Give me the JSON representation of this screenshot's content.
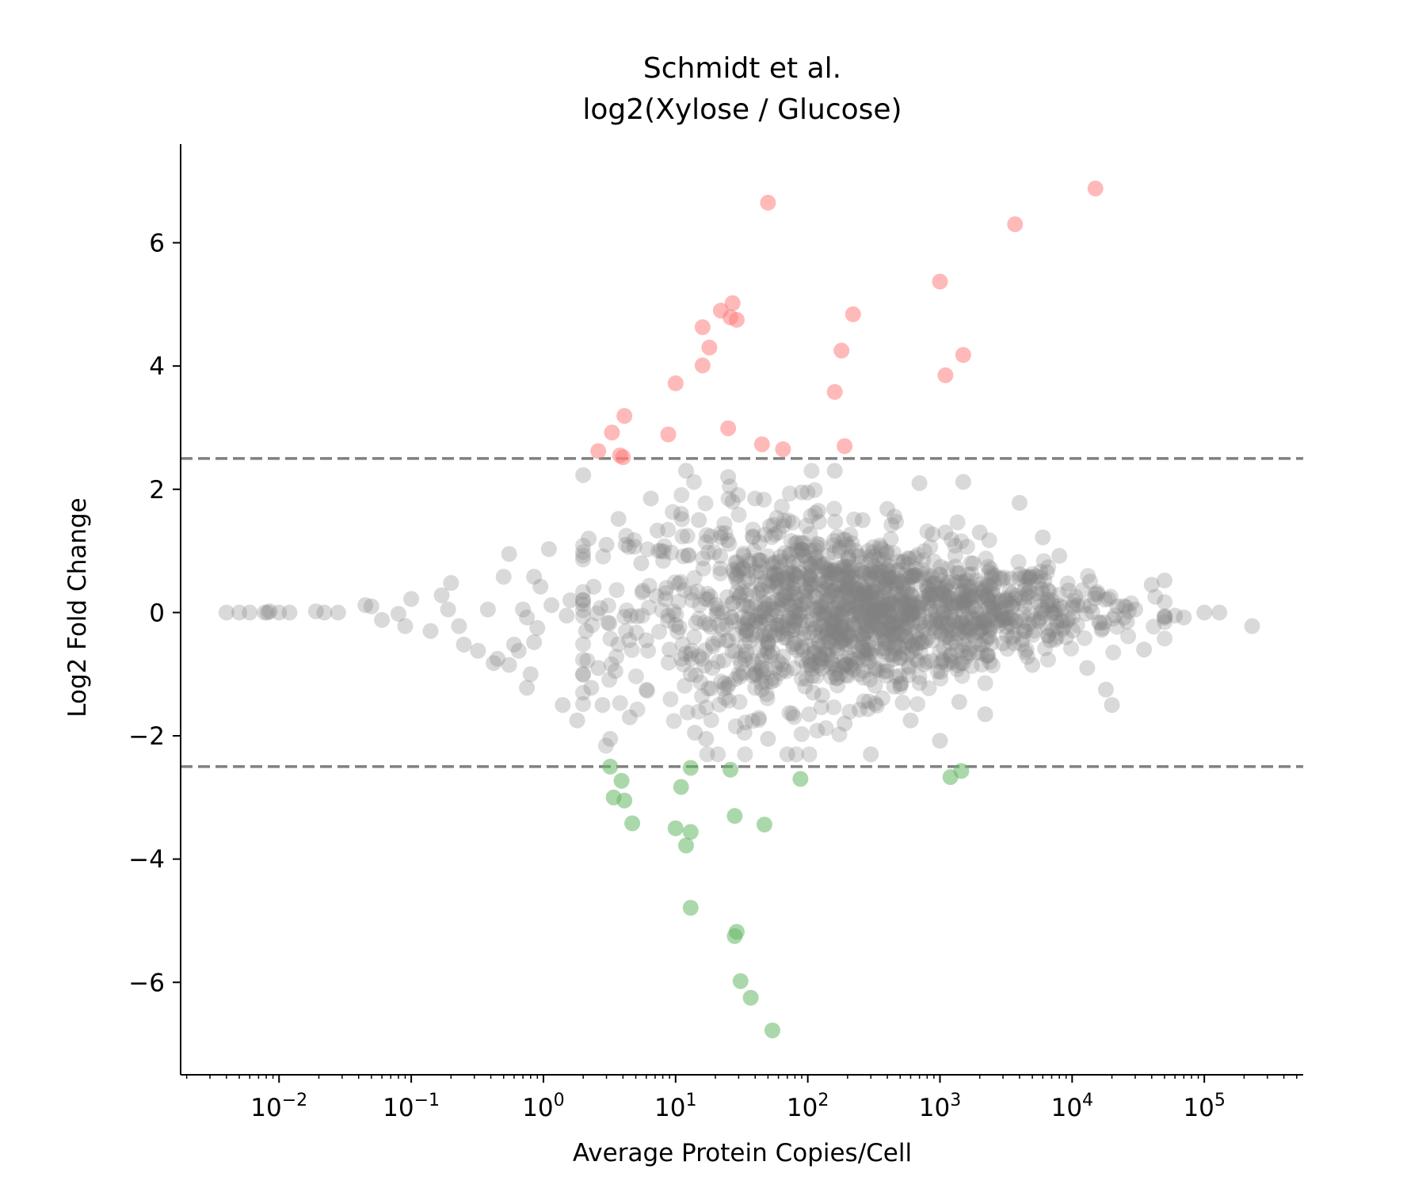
{
  "chart_data": {
    "type": "scatter",
    "title": [
      "Schmidt et al.",
      "log2(Xylose / Glucose)"
    ],
    "xlabel": "Average Protein Copies/Cell",
    "ylabel": "Log2 Fold Change",
    "x_scale": "log",
    "xlim": [
      0.0018,
      560000
    ],
    "ylim": [
      -7.5,
      7.6
    ],
    "x_ticks": [
      {
        "value": 0.01,
        "base": "10",
        "exp": "−2"
      },
      {
        "value": 0.1,
        "base": "10",
        "exp": "−1"
      },
      {
        "value": 1,
        "base": "10",
        "exp": "0"
      },
      {
        "value": 10,
        "base": "10",
        "exp": "1"
      },
      {
        "value": 100,
        "base": "10",
        "exp": "2"
      },
      {
        "value": 1000,
        "base": "10",
        "exp": "3"
      },
      {
        "value": 10000,
        "base": "10",
        "exp": "4"
      },
      {
        "value": 100000,
        "base": "10",
        "exp": "5"
      }
    ],
    "y_ticks": [
      {
        "value": 6,
        "label": "6"
      },
      {
        "value": 4,
        "label": "4"
      },
      {
        "value": 2,
        "label": "2"
      },
      {
        "value": 0,
        "label": "0"
      },
      {
        "value": -2,
        "label": "−2"
      },
      {
        "value": -4,
        "label": "−4"
      },
      {
        "value": -6,
        "label": "−6"
      }
    ],
    "thresholds": [
      2.5,
      -2.5
    ],
    "grid": false,
    "legend": "none",
    "colors": {
      "up": "#ff8080",
      "down": "#66b866",
      "other": "#808080",
      "threshold": "#808080"
    },
    "series": [
      {
        "category": "up",
        "points": [
          [
            50,
            6.65
          ],
          [
            15000,
            6.88
          ],
          [
            3700,
            6.3
          ],
          [
            1000,
            5.37
          ],
          [
            220,
            4.84
          ],
          [
            22,
            4.9
          ],
          [
            27,
            5.02
          ],
          [
            26,
            4.79
          ],
          [
            29,
            4.75
          ],
          [
            16,
            4.63
          ],
          [
            18,
            4.3
          ],
          [
            180,
            4.25
          ],
          [
            1500,
            4.18
          ],
          [
            16,
            4.01
          ],
          [
            1100,
            3.85
          ],
          [
            10,
            3.72
          ],
          [
            160,
            3.58
          ],
          [
            4.1,
            3.19
          ],
          [
            3.3,
            2.92
          ],
          [
            8.8,
            2.89
          ],
          [
            25,
            2.99
          ],
          [
            45,
            2.73
          ],
          [
            65,
            2.65
          ],
          [
            190,
            2.7
          ],
          [
            2.6,
            2.62
          ],
          [
            3.8,
            2.55
          ],
          [
            4.0,
            2.52
          ]
        ]
      },
      {
        "category": "down",
        "points": [
          [
            54,
            -6.78
          ],
          [
            37,
            -6.25
          ],
          [
            31,
            -5.98
          ],
          [
            29,
            -5.18
          ],
          [
            28,
            -5.25
          ],
          [
            13,
            -4.79
          ],
          [
            12,
            -3.78
          ],
          [
            13,
            -3.56
          ],
          [
            10,
            -3.5
          ],
          [
            4.7,
            -3.42
          ],
          [
            47,
            -3.44
          ],
          [
            28,
            -3.3
          ],
          [
            3.4,
            -3.0
          ],
          [
            4.1,
            -3.05
          ],
          [
            11,
            -2.83
          ],
          [
            3.9,
            -2.73
          ],
          [
            88,
            -2.7
          ],
          [
            1200,
            -2.67
          ],
          [
            1450,
            -2.57
          ],
          [
            13,
            -2.52
          ],
          [
            26,
            -2.55
          ],
          [
            3.2,
            -2.5
          ]
        ]
      }
    ],
    "other_points": [
      [
        0.004,
        0
      ],
      [
        0.005,
        0
      ],
      [
        0.006,
        0
      ],
      [
        0.0078,
        0
      ],
      [
        0.0082,
        0
      ],
      [
        0.0085,
        0.02
      ],
      [
        0.01,
        0
      ],
      [
        0.012,
        0
      ],
      [
        0.019,
        0.02
      ],
      [
        0.022,
        0
      ],
      [
        0.028,
        0
      ],
      [
        0.045,
        0.12
      ],
      [
        0.05,
        0.1
      ],
      [
        0.06,
        -0.12
      ],
      [
        0.08,
        -0.02
      ],
      [
        0.1,
        0.22
      ],
      [
        0.09,
        -0.22
      ],
      [
        0.14,
        -0.3
      ],
      [
        0.17,
        0.28
      ],
      [
        0.2,
        0.48
      ],
      [
        0.19,
        0.05
      ],
      [
        0.23,
        -0.22
      ],
      [
        0.25,
        -0.52
      ],
      [
        0.32,
        -0.62
      ],
      [
        0.38,
        0.05
      ],
      [
        0.42,
        -0.82
      ],
      [
        0.45,
        -0.75
      ],
      [
        0.5,
        0.58
      ],
      [
        0.55,
        0.95
      ],
      [
        0.6,
        -0.52
      ],
      [
        0.55,
        -0.85
      ],
      [
        0.65,
        -0.62
      ],
      [
        0.7,
        0.05
      ],
      [
        0.75,
        -0.08
      ],
      [
        0.75,
        -1.22
      ],
      [
        0.8,
        -1.0
      ],
      [
        0.85,
        -0.48
      ],
      [
        0.85,
        0.58
      ],
      [
        0.9,
        -0.25
      ],
      [
        0.95,
        0.42
      ],
      [
        1.1,
        1.03
      ],
      [
        1.15,
        0.12
      ],
      [
        1.4,
        -1.5
      ],
      [
        1.5,
        -0.05
      ],
      [
        1.6,
        0.2
      ],
      [
        1.8,
        -1.75
      ],
      [
        2.0,
        2.23
      ],
      [
        2.1,
        -0.3
      ],
      [
        2.2,
        1.2
      ],
      [
        2.4,
        0.42
      ],
      [
        2.3,
        -1.22
      ],
      [
        2.6,
        -0.9
      ],
      [
        2.8,
        -1.5
      ],
      [
        3.0,
        1.1
      ],
      [
        3.2,
        -2.05
      ],
      [
        3.5,
        -0.95
      ],
      [
        3.7,
        1.52
      ],
      [
        4.2,
        1.1
      ],
      [
        4.5,
        -1.7
      ],
      [
        5.5,
        0.8
      ],
      [
        6.0,
        -0.45
      ],
      [
        6.5,
        1.85
      ],
      [
        7.3,
        1.33
      ],
      [
        8.5,
        0.4
      ],
      [
        9.0,
        -0.6
      ],
      [
        10,
        -0.2
      ],
      [
        11,
        1.6
      ],
      [
        12,
        2.3
      ],
      [
        13,
        -1.0
      ],
      [
        14,
        -1.95
      ],
      [
        15,
        1.5
      ],
      [
        17,
        -2.05
      ],
      [
        19,
        -0.9
      ],
      [
        22,
        1.22
      ],
      [
        25,
        2.2
      ],
      [
        27,
        1.8
      ],
      [
        30,
        -1.0
      ],
      [
        35,
        -0.3
      ],
      [
        40,
        1.85
      ],
      [
        45,
        -1.25
      ],
      [
        50,
        -2.05
      ],
      [
        55,
        0.8
      ],
      [
        60,
        1.3
      ],
      [
        70,
        -2.3
      ],
      [
        80,
        -0.5
      ],
      [
        90,
        1.95
      ],
      [
        110,
        -1.3
      ],
      [
        120,
        1.65
      ],
      [
        140,
        -0.6
      ],
      [
        160,
        2.3
      ],
      [
        190,
        -1.8
      ],
      [
        220,
        -0.2
      ],
      [
        260,
        1.5
      ],
      [
        300,
        -2.3
      ],
      [
        350,
        0.7
      ],
      [
        400,
        1.68
      ],
      [
        450,
        -1.2
      ],
      [
        500,
        0.2
      ],
      [
        600,
        -1.75
      ],
      [
        700,
        2.1
      ],
      [
        800,
        -0.8
      ],
      [
        900,
        0.3
      ],
      [
        1000,
        -2.08
      ],
      [
        1100,
        1.3
      ],
      [
        1200,
        -0.7
      ],
      [
        1300,
        0.5
      ],
      [
        1400,
        -1.45
      ],
      [
        1500,
        2.12
      ],
      [
        1700,
        -0.25
      ],
      [
        2000,
        1.3
      ],
      [
        2200,
        -1.65
      ],
      [
        2600,
        0.6
      ],
      [
        3000,
        -0.5
      ],
      [
        3500,
        0.3
      ],
      [
        4000,
        1.78
      ],
      [
        5000,
        -0.85
      ],
      [
        6000,
        1.22
      ],
      [
        7000,
        0.2
      ],
      [
        8000,
        0.92
      ],
      [
        9000,
        -0.4
      ],
      [
        11000,
        0.12
      ],
      [
        13000,
        -0.9
      ],
      [
        15000,
        0.3
      ],
      [
        18000,
        -1.25
      ],
      [
        20000,
        -1.5
      ],
      [
        22000,
        0.1
      ],
      [
        26000,
        -0.15
      ],
      [
        30000,
        0.05
      ],
      [
        35000,
        -0.6
      ],
      [
        40000,
        0.45
      ],
      [
        50000,
        0.52
      ],
      [
        60000,
        -0.05
      ],
      [
        70000,
        -0.08
      ],
      [
        100000,
        0
      ],
      [
        130000,
        0
      ],
      [
        230000,
        -0.22
      ]
    ]
  }
}
